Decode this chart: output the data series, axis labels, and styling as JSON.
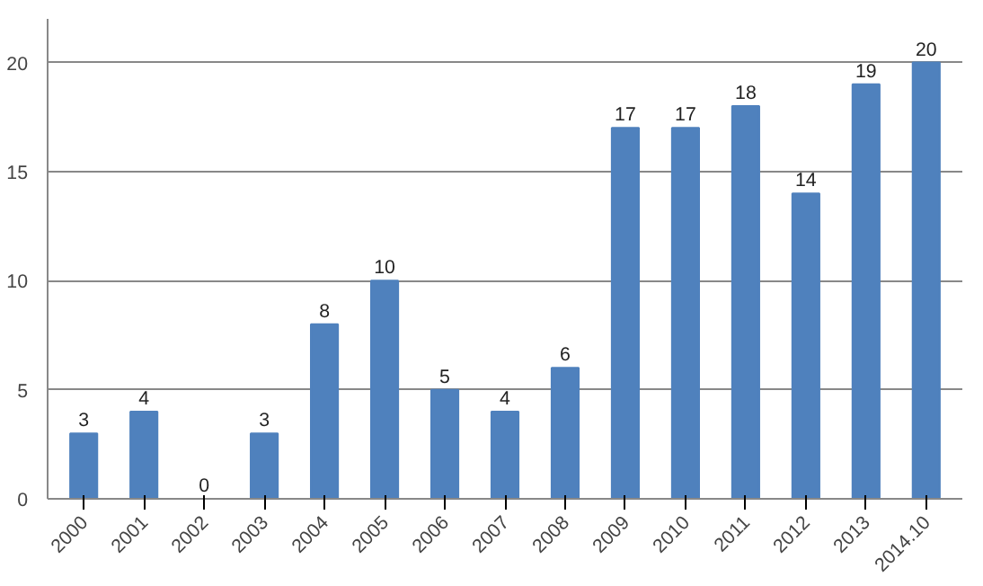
{
  "chart_data": {
    "type": "bar",
    "categories": [
      "2000",
      "2001",
      "2002",
      "2003",
      "2004",
      "2005",
      "2006",
      "2007",
      "2008",
      "2009",
      "2010",
      "2011",
      "2012",
      "2013",
      "2014.10"
    ],
    "values": [
      3,
      4,
      0,
      3,
      8,
      10,
      5,
      4,
      6,
      17,
      17,
      18,
      14,
      19,
      20
    ],
    "color": "#4f81bd",
    "ylim": [
      0,
      22
    ],
    "yticks": [
      0,
      5,
      10,
      15,
      20
    ],
    "grid": "y",
    "data_labels": true
  }
}
